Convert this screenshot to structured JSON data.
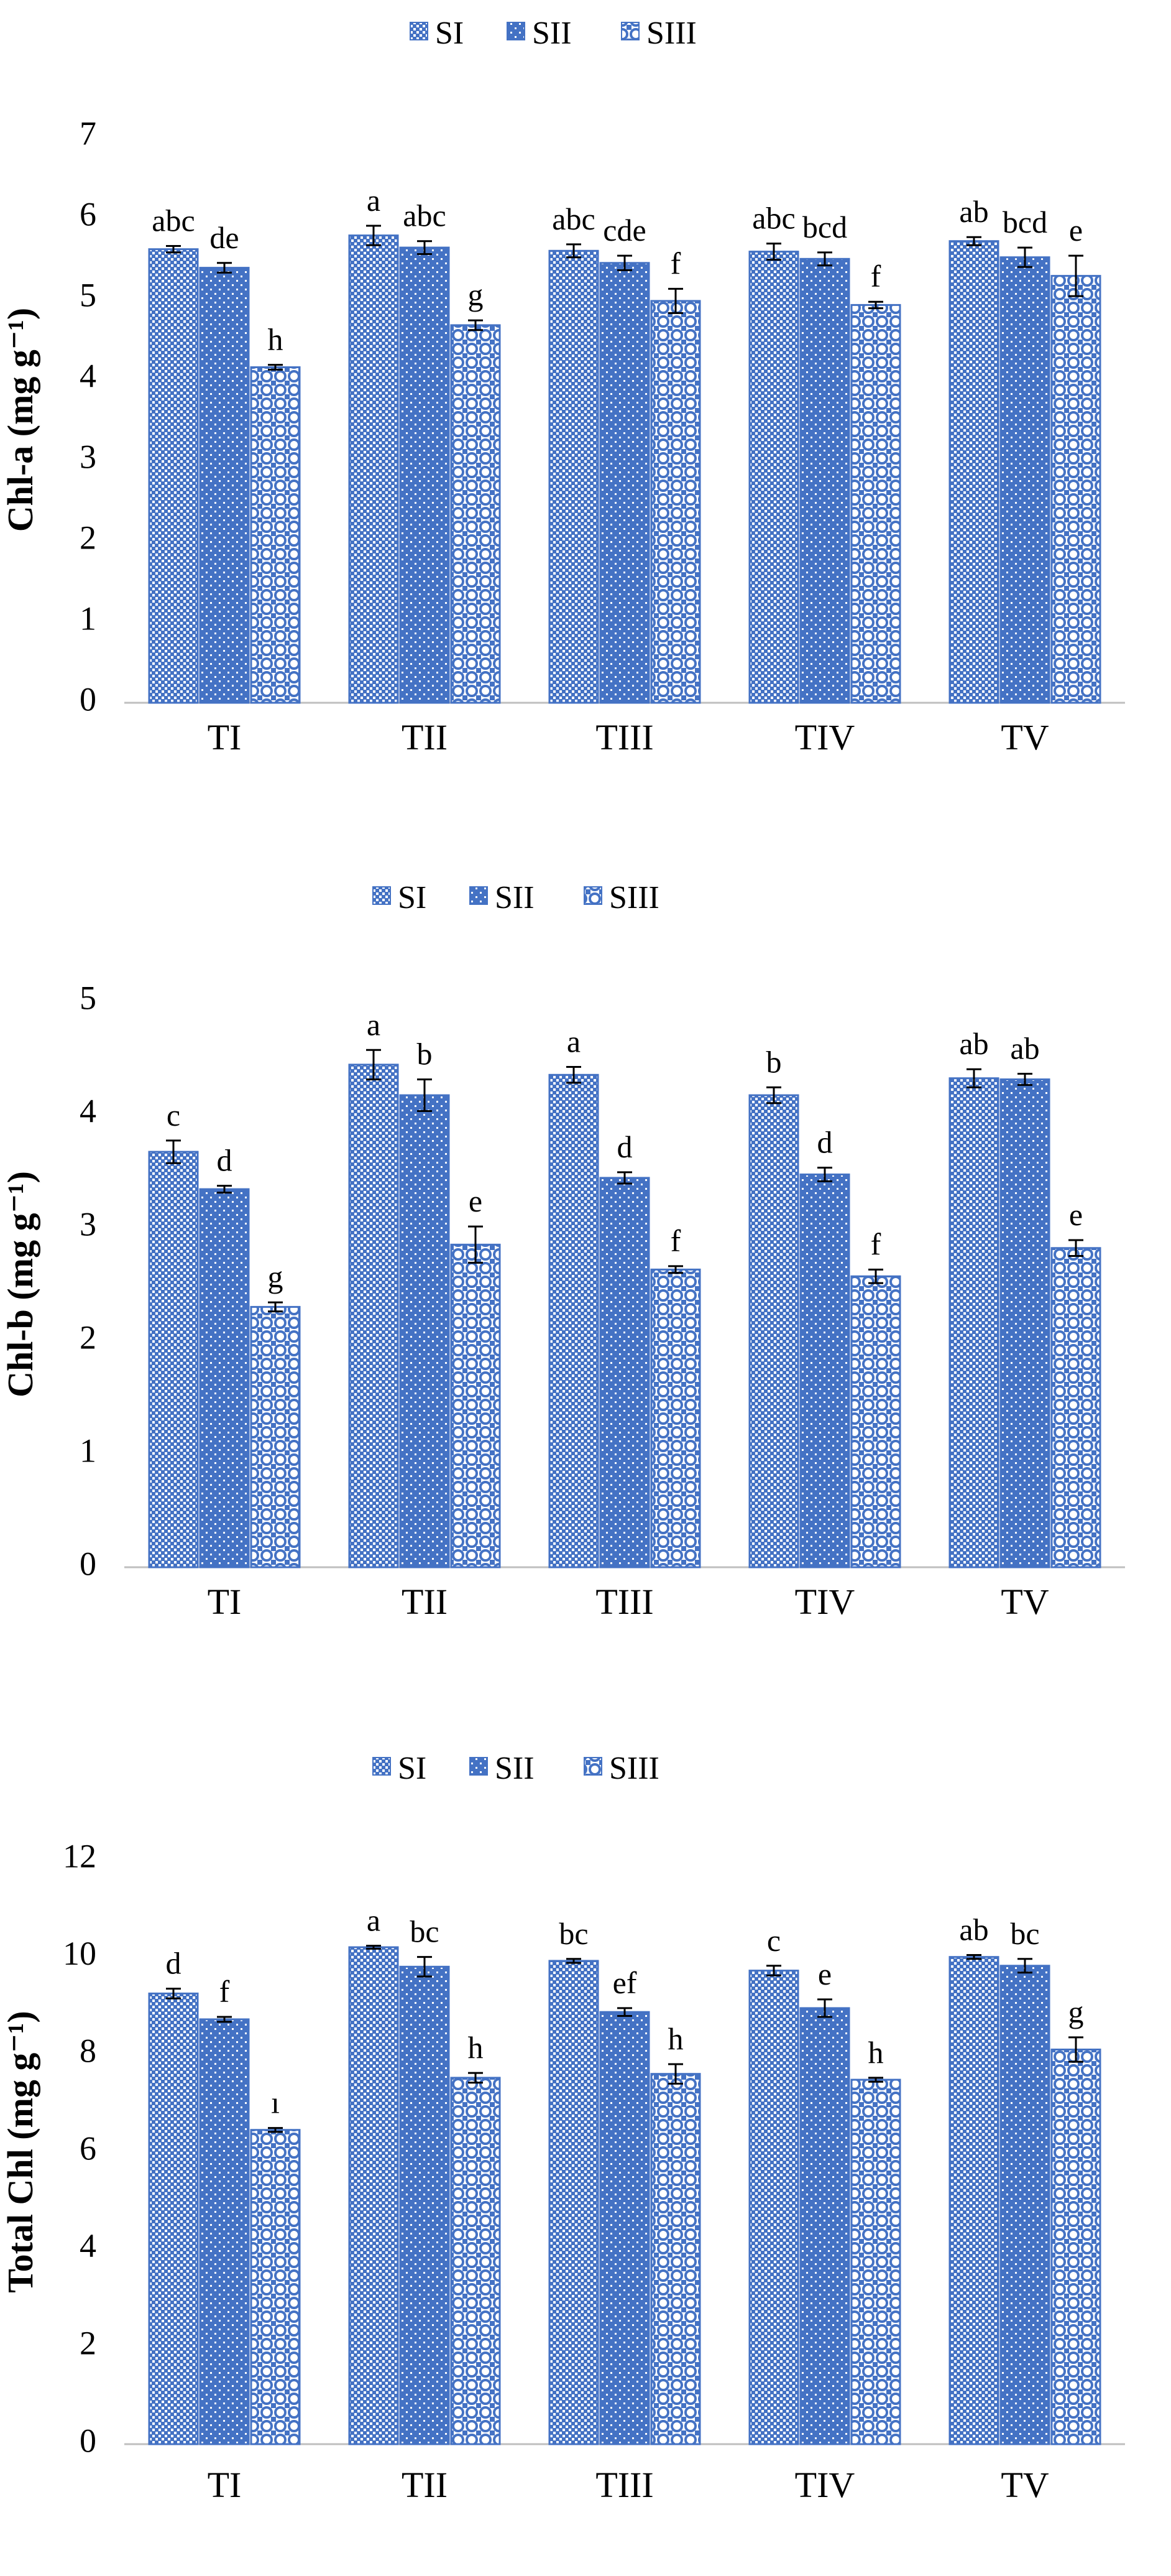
{
  "chart_data": [
    {
      "type": "bar",
      "ylabel": "Chl-a (mg g⁻¹)",
      "ylim": [
        0,
        7
      ],
      "yticks": [
        "0",
        "1",
        "2",
        "3",
        "4",
        "5",
        "6",
        "7"
      ],
      "categories": [
        "TI",
        "TII",
        "TIII",
        "TIV",
        "TV"
      ],
      "legend_position": "top-center",
      "series": [
        {
          "name": "SI",
          "values": [
            5.61,
            5.78,
            5.59,
            5.58,
            5.71
          ],
          "errors": [
            0.04,
            0.12,
            0.08,
            0.1,
            0.05
          ],
          "letters": [
            "abc",
            "a",
            "abc",
            "abc",
            "ab"
          ]
        },
        {
          "name": "SII",
          "values": [
            5.38,
            5.63,
            5.44,
            5.49,
            5.51
          ],
          "errors": [
            0.06,
            0.08,
            0.09,
            0.08,
            0.12
          ],
          "letters": [
            "de",
            "abc",
            "cde",
            "bcd",
            "bcd"
          ]
        },
        {
          "name": "SIII",
          "values": [
            4.15,
            4.67,
            4.97,
            4.92,
            5.28
          ],
          "errors": [
            0.03,
            0.06,
            0.15,
            0.04,
            0.25
          ],
          "letters": [
            "h",
            "g",
            "f",
            "f",
            "e"
          ]
        }
      ]
    },
    {
      "type": "bar",
      "ylabel": "Chl-b (mg g⁻¹)",
      "ylim": [
        0,
        5
      ],
      "yticks": [
        "0",
        "1",
        "2",
        "3",
        "4",
        "5"
      ],
      "categories": [
        "TI",
        "TII",
        "TIII",
        "TIV",
        "TV"
      ],
      "legend_position": "top-center",
      "series": [
        {
          "name": "SI",
          "values": [
            3.67,
            4.44,
            4.35,
            4.17,
            4.32
          ],
          "errors": [
            0.1,
            0.13,
            0.07,
            0.07,
            0.08
          ],
          "letters": [
            "c",
            "a",
            "a",
            "b",
            "ab"
          ]
        },
        {
          "name": "SII",
          "values": [
            3.34,
            4.17,
            3.44,
            3.47,
            4.31
          ],
          "errors": [
            0.03,
            0.14,
            0.05,
            0.06,
            0.05
          ],
          "letters": [
            "d",
            "b",
            "d",
            "d",
            "ab"
          ]
        },
        {
          "name": "SIII",
          "values": [
            2.3,
            2.85,
            2.63,
            2.57,
            2.82
          ],
          "errors": [
            0.04,
            0.16,
            0.03,
            0.06,
            0.07
          ],
          "letters": [
            "g",
            "e",
            "f",
            "f",
            "e"
          ]
        }
      ]
    },
    {
      "type": "bar",
      "ylabel": "Total Chl (mg g⁻¹)",
      "ylim": [
        0,
        12
      ],
      "yticks": [
        "0",
        "2",
        "4",
        "6",
        "8",
        "10",
        "12"
      ],
      "categories": [
        "TI",
        "TII",
        "TIII",
        "TIV",
        "TV"
      ],
      "legend_position": "top-center",
      "series": [
        {
          "name": "SI",
          "values": [
            9.25,
            10.2,
            9.92,
            9.72,
            10.0
          ],
          "errors": [
            0.1,
            0.03,
            0.04,
            0.1,
            0.04
          ],
          "letters": [
            "d",
            "a",
            "bc",
            "c",
            "ab"
          ]
        },
        {
          "name": "SII",
          "values": [
            8.72,
            9.8,
            8.87,
            8.95,
            9.82
          ],
          "errors": [
            0.05,
            0.2,
            0.08,
            0.18,
            0.14
          ],
          "letters": [
            "f",
            "bc",
            "ef",
            "e",
            "bc"
          ]
        },
        {
          "name": "SIII",
          "values": [
            6.45,
            7.52,
            7.6,
            7.48,
            8.1
          ],
          "errors": [
            0.04,
            0.1,
            0.2,
            0.04,
            0.25
          ],
          "letters": [
            "ı",
            "h",
            "h",
            "h",
            "g"
          ]
        }
      ]
    }
  ]
}
